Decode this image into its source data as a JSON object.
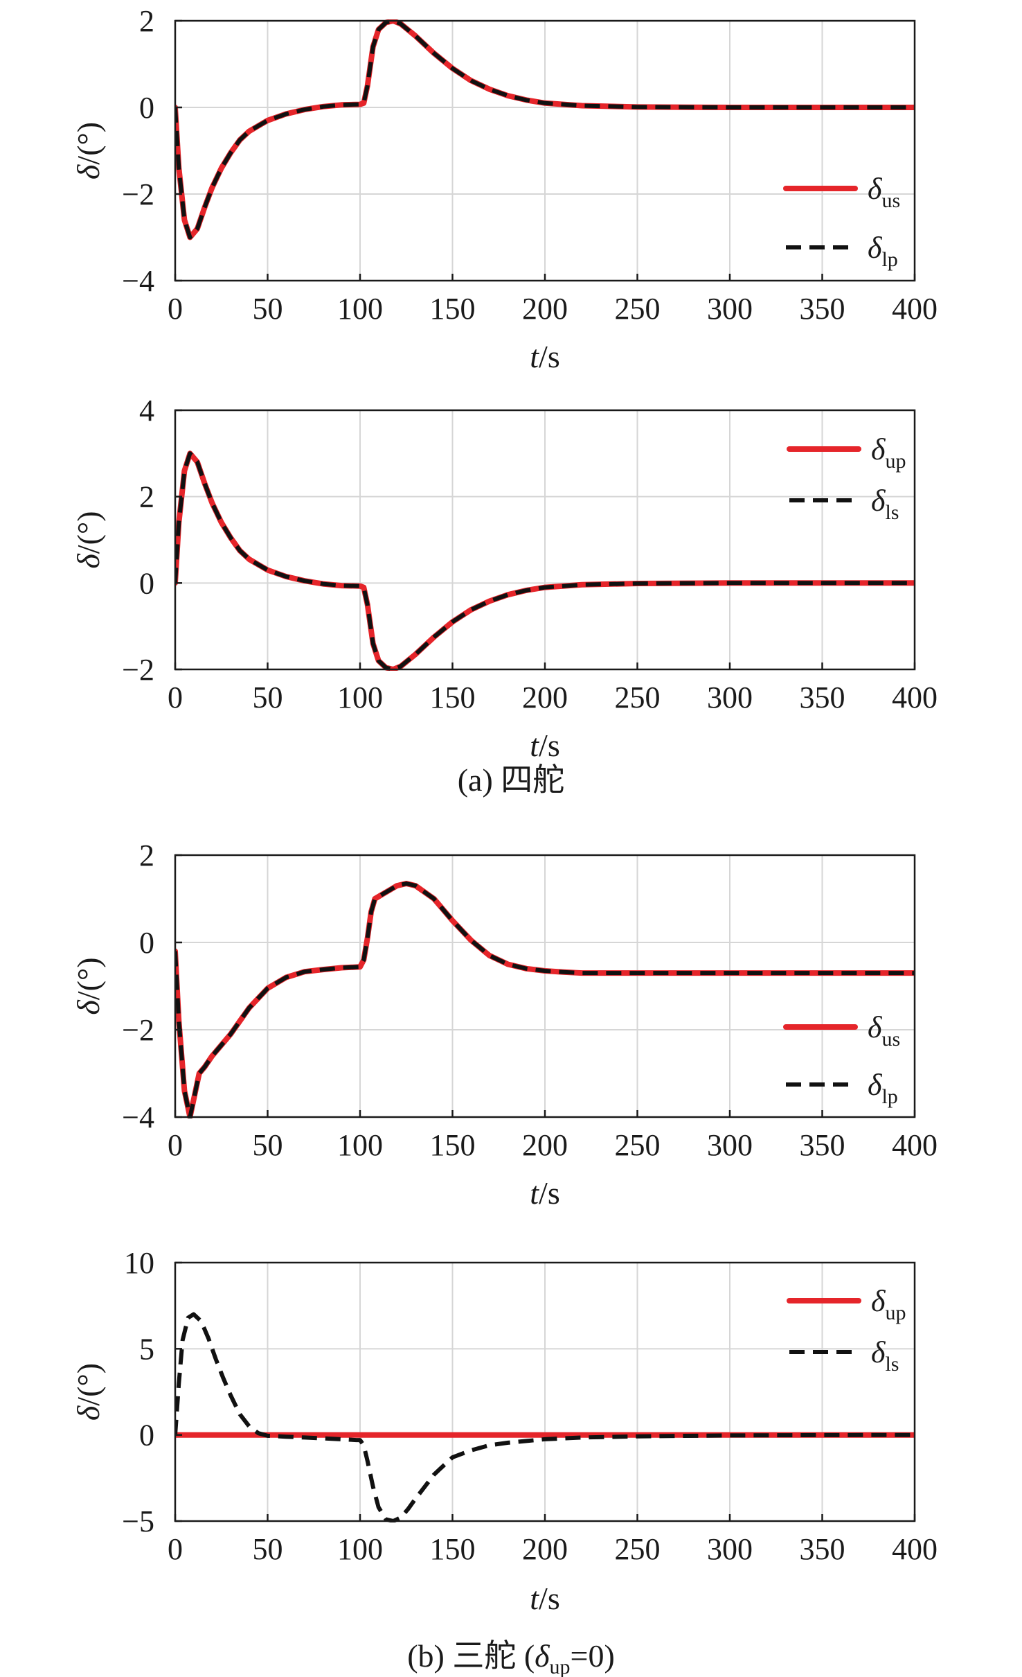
{
  "figure": {
    "captions": {
      "a": "(a) 四舵",
      "b_prefix": "(b) 三舵 (",
      "b_symbol": "δ",
      "b_sub": "up",
      "b_suffix": "=0)"
    }
  },
  "chart_data": [
    {
      "type": "line",
      "ylabel": "δ/(°)",
      "xlabel": "t/s",
      "xlim": [
        0,
        400
      ],
      "ylim": [
        -4,
        2
      ],
      "xticks": [
        0,
        50,
        100,
        150,
        200,
        250,
        300,
        350,
        400
      ],
      "yticks": [
        -4,
        -2,
        0,
        2
      ],
      "grid": true,
      "legend_position": "right",
      "series": [
        {
          "name": "δus",
          "symbol": "δ",
          "sub": "us",
          "style": "solid",
          "color": "#e5252a",
          "x": [
            0,
            2,
            5,
            8,
            12,
            16,
            20,
            25,
            30,
            35,
            40,
            50,
            60,
            70,
            80,
            90,
            100,
            102,
            104,
            107,
            110,
            114,
            118,
            122,
            130,
            140,
            150,
            160,
            170,
            180,
            190,
            200,
            220,
            250,
            300,
            350,
            400
          ],
          "y": [
            0,
            -1.4,
            -2.6,
            -3.0,
            -2.8,
            -2.3,
            -1.85,
            -1.4,
            -1.05,
            -0.75,
            -0.55,
            -0.3,
            -0.15,
            -0.05,
            0.02,
            0.06,
            0.07,
            0.1,
            0.5,
            1.4,
            1.8,
            1.96,
            2.0,
            1.93,
            1.65,
            1.25,
            0.9,
            0.62,
            0.42,
            0.27,
            0.17,
            0.1,
            0.04,
            0.01,
            0,
            0,
            0
          ]
        },
        {
          "name": "δlp",
          "symbol": "δ",
          "sub": "lp",
          "style": "dashed",
          "color": "#111111",
          "x": [
            0,
            2,
            5,
            8,
            12,
            16,
            20,
            25,
            30,
            35,
            40,
            50,
            60,
            70,
            80,
            90,
            100,
            102,
            104,
            107,
            110,
            114,
            118,
            122,
            130,
            140,
            150,
            160,
            170,
            180,
            190,
            200,
            220,
            250,
            300,
            350,
            400
          ],
          "y": [
            0,
            -1.4,
            -2.6,
            -3.0,
            -2.8,
            -2.3,
            -1.85,
            -1.4,
            -1.05,
            -0.75,
            -0.55,
            -0.3,
            -0.15,
            -0.05,
            0.02,
            0.06,
            0.07,
            0.1,
            0.5,
            1.4,
            1.8,
            1.96,
            2.0,
            1.93,
            1.65,
            1.25,
            0.9,
            0.62,
            0.42,
            0.27,
            0.17,
            0.1,
            0.04,
            0.01,
            0,
            0,
            0
          ]
        }
      ]
    },
    {
      "type": "line",
      "ylabel": "δ/(°)",
      "xlabel": "t/s",
      "xlim": [
        0,
        400
      ],
      "ylim": [
        -2,
        4
      ],
      "xticks": [
        0,
        50,
        100,
        150,
        200,
        250,
        300,
        350,
        400
      ],
      "yticks": [
        -2,
        0,
        2,
        4
      ],
      "grid": true,
      "legend_position": "top-right",
      "series": [
        {
          "name": "δup",
          "symbol": "δ",
          "sub": "up",
          "style": "solid",
          "color": "#e5252a",
          "x": [
            0,
            2,
            5,
            8,
            12,
            16,
            20,
            25,
            30,
            35,
            40,
            50,
            60,
            70,
            80,
            90,
            100,
            102,
            104,
            107,
            110,
            114,
            118,
            122,
            130,
            140,
            150,
            160,
            170,
            180,
            190,
            200,
            220,
            250,
            300,
            350,
            400
          ],
          "y": [
            0,
            1.4,
            2.6,
            3.0,
            2.8,
            2.3,
            1.85,
            1.4,
            1.05,
            0.75,
            0.55,
            0.3,
            0.15,
            0.05,
            -0.02,
            -0.06,
            -0.07,
            -0.1,
            -0.5,
            -1.4,
            -1.8,
            -1.96,
            -2.0,
            -1.93,
            -1.65,
            -1.25,
            -0.9,
            -0.62,
            -0.42,
            -0.27,
            -0.17,
            -0.1,
            -0.04,
            -0.01,
            0,
            0,
            0
          ]
        },
        {
          "name": "δls",
          "symbol": "δ",
          "sub": "ls",
          "style": "dashed",
          "color": "#111111",
          "x": [
            0,
            2,
            5,
            8,
            12,
            16,
            20,
            25,
            30,
            35,
            40,
            50,
            60,
            70,
            80,
            90,
            100,
            102,
            104,
            107,
            110,
            114,
            118,
            122,
            130,
            140,
            150,
            160,
            170,
            180,
            190,
            200,
            220,
            250,
            300,
            350,
            400
          ],
          "y": [
            0,
            1.4,
            2.6,
            3.0,
            2.8,
            2.3,
            1.85,
            1.4,
            1.05,
            0.75,
            0.55,
            0.3,
            0.15,
            0.05,
            -0.02,
            -0.06,
            -0.07,
            -0.1,
            -0.5,
            -1.4,
            -1.8,
            -1.96,
            -2.0,
            -1.93,
            -1.65,
            -1.25,
            -0.9,
            -0.62,
            -0.42,
            -0.27,
            -0.17,
            -0.1,
            -0.04,
            -0.01,
            0,
            0,
            0
          ]
        }
      ]
    },
    {
      "type": "line",
      "ylabel": "δ/(°)",
      "xlabel": "t/s",
      "xlim": [
        0,
        400
      ],
      "ylim": [
        -4,
        2
      ],
      "xticks": [
        0,
        50,
        100,
        150,
        200,
        250,
        300,
        350,
        400
      ],
      "yticks": [
        -4,
        -2,
        0,
        2
      ],
      "grid": true,
      "legend_position": "right",
      "series": [
        {
          "name": "δus",
          "symbol": "δ",
          "sub": "us",
          "style": "solid",
          "color": "#e5252a",
          "x": [
            0,
            2,
            5,
            8,
            10,
            13,
            16,
            20,
            25,
            30,
            40,
            50,
            60,
            70,
            80,
            90,
            100,
            102,
            104,
            106,
            108,
            112,
            116,
            120,
            125,
            130,
            140,
            150,
            160,
            170,
            180,
            190,
            200,
            210,
            220,
            250,
            300,
            350,
            400
          ],
          "y": [
            -0.2,
            -1.8,
            -3.4,
            -4.0,
            -3.6,
            -3.0,
            -2.85,
            -2.6,
            -2.35,
            -2.1,
            -1.5,
            -1.05,
            -0.8,
            -0.67,
            -0.62,
            -0.58,
            -0.56,
            -0.4,
            0.1,
            0.7,
            1.0,
            1.1,
            1.2,
            1.3,
            1.35,
            1.3,
            1.0,
            0.5,
            0.05,
            -0.3,
            -0.5,
            -0.6,
            -0.65,
            -0.68,
            -0.7,
            -0.7,
            -0.7,
            -0.7,
            -0.7
          ]
        },
        {
          "name": "δlp",
          "symbol": "δ",
          "sub": "lp",
          "style": "dashed",
          "color": "#111111",
          "x": [
            0,
            2,
            5,
            8,
            10,
            13,
            16,
            20,
            25,
            30,
            40,
            50,
            60,
            70,
            80,
            90,
            100,
            102,
            104,
            106,
            108,
            112,
            116,
            120,
            125,
            130,
            140,
            150,
            160,
            170,
            180,
            190,
            200,
            210,
            220,
            250,
            300,
            350,
            400
          ],
          "y": [
            -0.2,
            -1.8,
            -3.4,
            -4.0,
            -3.6,
            -3.0,
            -2.85,
            -2.6,
            -2.35,
            -2.1,
            -1.5,
            -1.05,
            -0.8,
            -0.67,
            -0.62,
            -0.58,
            -0.56,
            -0.4,
            0.1,
            0.7,
            1.0,
            1.1,
            1.2,
            1.3,
            1.35,
            1.3,
            1.0,
            0.5,
            0.05,
            -0.3,
            -0.5,
            -0.6,
            -0.65,
            -0.68,
            -0.7,
            -0.7,
            -0.7,
            -0.7,
            -0.7
          ]
        }
      ]
    },
    {
      "type": "line",
      "ylabel": "δ/(°)",
      "xlabel": "t/s",
      "xlim": [
        0,
        400
      ],
      "ylim": [
        -5,
        10
      ],
      "xticks": [
        0,
        50,
        100,
        150,
        200,
        250,
        300,
        350,
        400
      ],
      "yticks": [
        -5,
        0,
        5,
        10
      ],
      "grid": true,
      "legend_position": "top-right",
      "series": [
        {
          "name": "δup",
          "symbol": "δ",
          "sub": "up",
          "style": "solid",
          "color": "#e5252a",
          "x": [
            0,
            400
          ],
          "y": [
            0,
            0
          ]
        },
        {
          "name": "δls",
          "symbol": "δ",
          "sub": "ls",
          "style": "dashed",
          "color": "#111111",
          "x": [
            0,
            2,
            4,
            7,
            10,
            14,
            18,
            22,
            26,
            30,
            35,
            40,
            45,
            50,
            60,
            70,
            80,
            90,
            98,
            100,
            102,
            104,
            107,
            110,
            114,
            118,
            122,
            126,
            130,
            135,
            140,
            145,
            150,
            160,
            170,
            180,
            190,
            200,
            220,
            250,
            300,
            350,
            400
          ],
          "y": [
            0,
            3.0,
            5.5,
            6.8,
            7.0,
            6.6,
            5.6,
            4.4,
            3.3,
            2.3,
            1.2,
            0.5,
            0.1,
            -0.05,
            -0.1,
            -0.15,
            -0.2,
            -0.25,
            -0.3,
            -0.3,
            -0.6,
            -1.5,
            -3.0,
            -4.2,
            -4.9,
            -5.0,
            -4.8,
            -4.3,
            -3.7,
            -3.0,
            -2.3,
            -1.8,
            -1.3,
            -0.9,
            -0.6,
            -0.45,
            -0.35,
            -0.25,
            -0.15,
            -0.08,
            -0.03,
            -0.01,
            0
          ]
        }
      ]
    }
  ]
}
